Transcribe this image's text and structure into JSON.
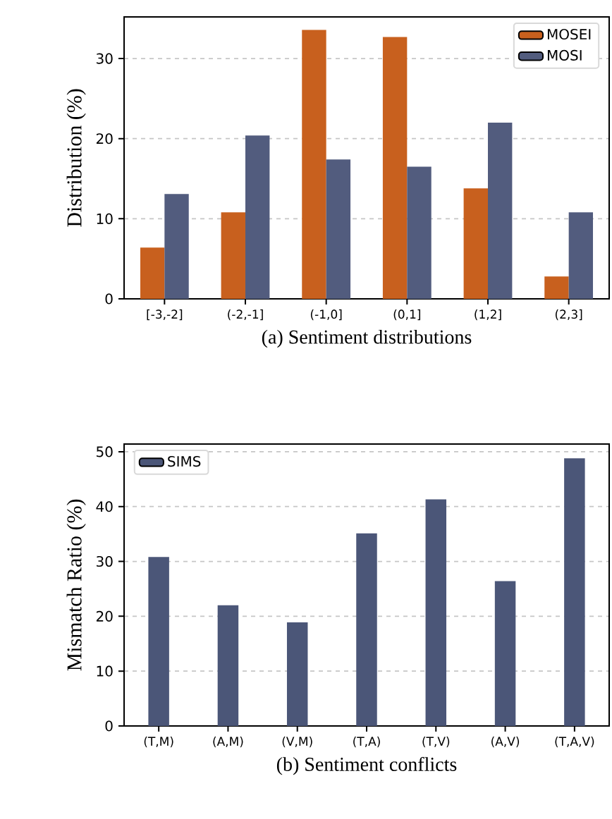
{
  "chart_data": [
    {
      "type": "bar",
      "xlabel": "(a) Sentiment distributions",
      "ylabel": "Distribution (%)",
      "categories": [
        "[-3,-2]",
        "(-2,-1]",
        "(-1,0]",
        "(0,1]",
        "(1,2]",
        "(2,3]"
      ],
      "series": [
        {
          "name": "MOSEI",
          "color": "#c8601e",
          "values": [
            6.4,
            10.8,
            33.6,
            32.7,
            13.8,
            2.8
          ]
        },
        {
          "name": "MOSI",
          "color": "#525c7e",
          "values": [
            13.1,
            20.4,
            17.4,
            16.5,
            22.0,
            10.8
          ]
        }
      ],
      "ylim": [
        0,
        35.2
      ],
      "yticks": [
        0,
        10,
        20,
        30
      ],
      "grid": "y",
      "legend": "top right"
    },
    {
      "type": "bar",
      "xlabel": "(b) Sentiment conflicts",
      "ylabel": "Mismatch Ratio (%)",
      "categories": [
        "(T,M)",
        "(A,M)",
        "(V,M)",
        "(T,A)",
        "(T,V)",
        "(A,V)",
        "(T,A,V)"
      ],
      "series": [
        {
          "name": "SIMS",
          "color": "#4b5678",
          "values": [
            30.8,
            22.0,
            18.9,
            35.1,
            41.3,
            26.4,
            48.8
          ]
        }
      ],
      "ylim": [
        0,
        51.4
      ],
      "yticks": [
        0,
        10,
        20,
        30,
        40,
        50
      ],
      "grid": "y",
      "legend": "top left"
    }
  ]
}
